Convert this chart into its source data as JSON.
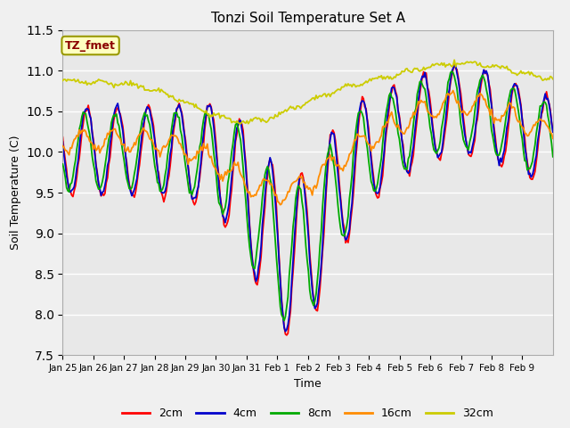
{
  "title": "Tonzi Soil Temperature Set A",
  "xlabel": "Time",
  "ylabel": "Soil Temperature (C)",
  "ylim": [
    7.5,
    11.5
  ],
  "annotation": "TZ_fmet",
  "annotation_color": "#8B0000",
  "annotation_bg": "#FFFFC0",
  "annotation_edge": "#999900",
  "bg_color": "#E8E8E8",
  "fig_bg_color": "#F0F0F0",
  "line_colors": {
    "2cm": "#FF0000",
    "4cm": "#0000CC",
    "8cm": "#00AA00",
    "16cm": "#FF8C00",
    "32cm": "#CCCC00"
  },
  "xtick_labels": [
    "Jan 25",
    "Jan 26",
    "Jan 27",
    "Jan 28",
    "Jan 29",
    "Jan 30",
    "Jan 31",
    "Feb 1",
    "Feb 2",
    "Feb 3",
    "Feb 4",
    "Feb 5",
    "Feb 6",
    "Feb 7",
    "Feb 8",
    "Feb 9"
  ],
  "n_ticks": 16
}
